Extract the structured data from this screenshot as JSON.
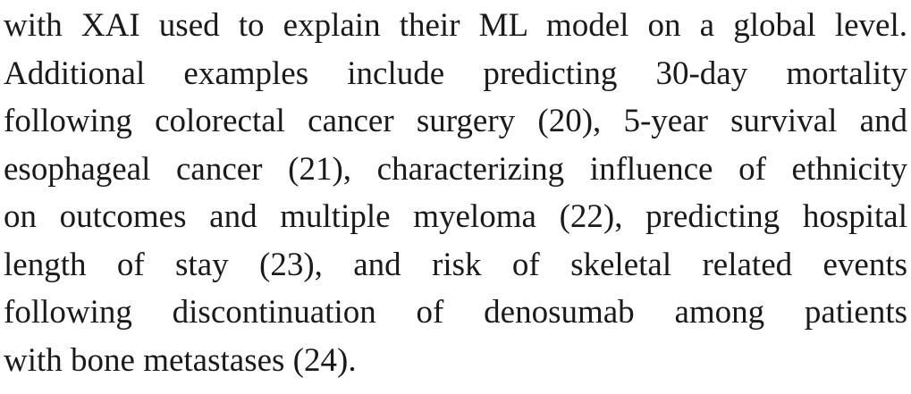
{
  "paragraph": {
    "lines": [
      "with XAI used to explain their ML model on a global level.",
      "Additional examples include predicting 30-day mortality",
      "following colorectal cancer surgery (20), 5-year survival and",
      "esophageal cancer (21), characterizing influence of ethnicity",
      "on outcomes and multiple myeloma (22), predicting hospital",
      "length of stay (23), and risk of skeletal related events",
      "following discontinuation of denosumab among patients",
      "with bone metastases (24)."
    ]
  }
}
